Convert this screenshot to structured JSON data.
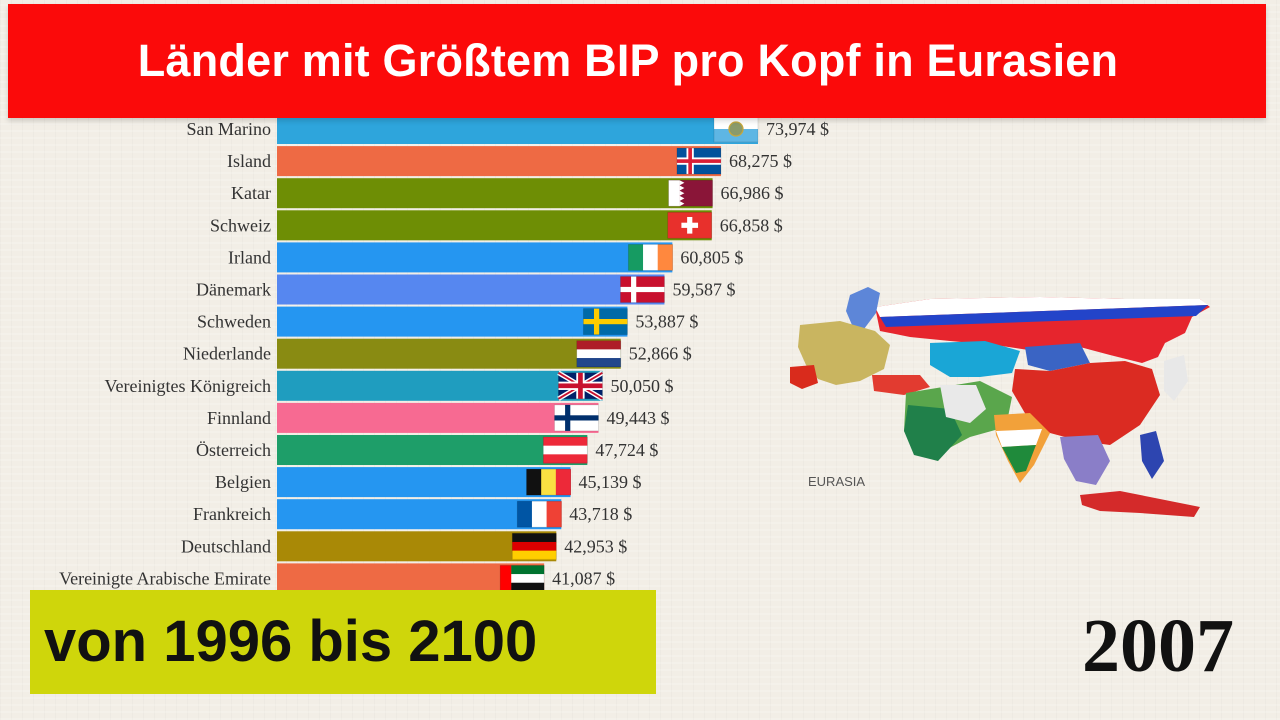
{
  "title": "Länder mit Größtem BIP pro Kopf in Eurasien",
  "subtitle_box": "von 1996 bis 2100",
  "year": "2007",
  "map_label": "EURASIA",
  "chart_data": {
    "type": "bar",
    "orientation": "horizontal",
    "title": "Länder mit Größtem BIP pro Kopf in Eurasien",
    "categories": [
      "San Marino",
      "Island",
      "Katar",
      "Schweiz",
      "Irland",
      "Dänemark",
      "Schweden",
      "Niederlande",
      "Vereinigtes Königreich",
      "Finnland",
      "Österreich",
      "Belgien",
      "Frankreich",
      "Deutschland",
      "Vereinigte Arabische Emirate"
    ],
    "values": [
      73974,
      68275,
      66986,
      66858,
      60805,
      59587,
      53887,
      52866,
      50050,
      49443,
      47724,
      45139,
      43718,
      42953,
      41087
    ],
    "value_labels": [
      "73,974 $",
      "68,275 $",
      "66,986 $",
      "66,858 $",
      "60,805 $",
      "59,587 $",
      "53,887 $",
      "52,866 $",
      "50,050 $",
      "49,443 $",
      "47,724 $",
      "45,139 $",
      "43,718 $",
      "42,953 $",
      "41,087 $"
    ],
    "colors": [
      "#2ea5dc",
      "#ee6a44",
      "#6e8e05",
      "#6e8e05",
      "#2596f1",
      "#5687f0",
      "#2596f1",
      "#898b12",
      "#1f9dbf",
      "#f76a92",
      "#1e9e69",
      "#2596f1",
      "#2596f1",
      "#a98906",
      "#ee6a44"
    ],
    "flags": [
      "san-marino-flag",
      "iceland-flag",
      "qatar-flag",
      "switzerland-flag",
      "ireland-flag",
      "denmark-flag",
      "sweden-flag",
      "netherlands-flag",
      "united-kingdom-flag",
      "finland-flag",
      "austria-flag",
      "belgium-flag",
      "france-flag",
      "germany-flag",
      "uae-flag"
    ],
    "xlim": [
      0,
      73974
    ],
    "grid": false,
    "legend": "none"
  }
}
